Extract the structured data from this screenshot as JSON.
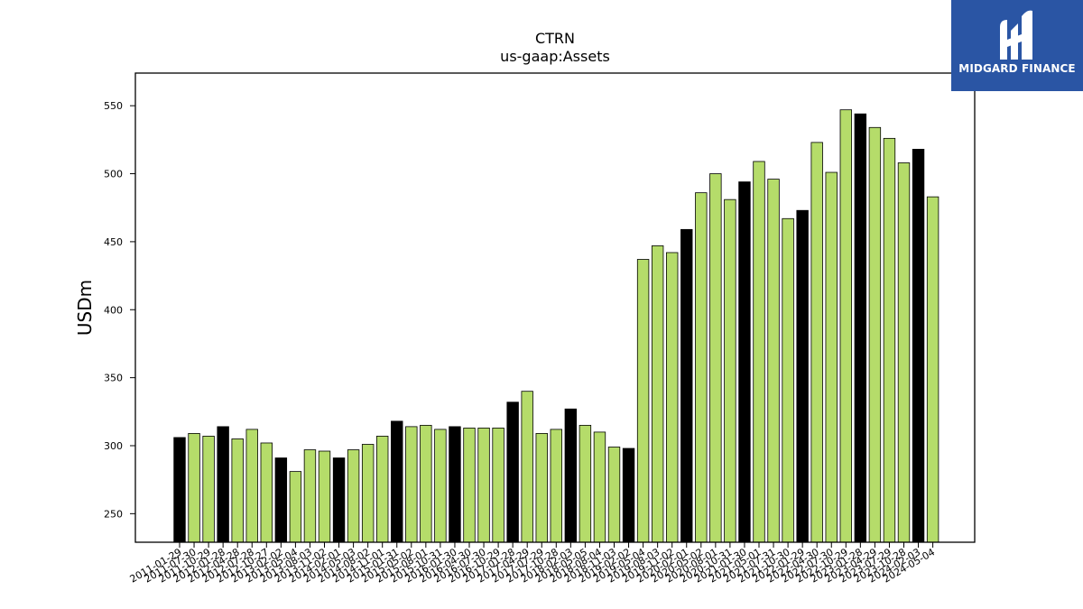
{
  "logo": {
    "text": "MIDGARD FINANCE",
    "icon": "midgard-logo-icon",
    "background": "#2a55a4"
  },
  "chart_data": {
    "type": "bar",
    "title": "CTRN",
    "subtitle": "us-gaap:Assets",
    "xlabel": "",
    "ylabel": "USDm",
    "ylim": [
      229,
      574
    ],
    "yticks": [
      250,
      300,
      350,
      400,
      450,
      500,
      550
    ],
    "grid": false,
    "colors": {
      "quarter": "#b5dc6a",
      "fiscal_year_end": "#000000",
      "edge": "#000000"
    },
    "categories": [
      "2011-01-29",
      "2011-07-30",
      "2011-10-29",
      "2012-01-28",
      "2012-04-28",
      "2012-07-28",
      "2012-10-27",
      "2013-02-02",
      "2013-05-04",
      "2013-08-03",
      "2013-11-02",
      "2014-02-01",
      "2014-05-03",
      "2014-08-02",
      "2014-11-01",
      "2015-01-31",
      "2015-05-02",
      "2015-08-01",
      "2015-10-31",
      "2016-01-30",
      "2016-04-30",
      "2016-07-30",
      "2016-10-29",
      "2017-01-28",
      "2017-04-29",
      "2017-07-29",
      "2017-10-28",
      "2018-02-03",
      "2018-05-05",
      "2018-08-04",
      "2018-11-03",
      "2019-02-02",
      "2019-05-04",
      "2019-08-03",
      "2019-11-02",
      "2020-02-01",
      "2020-05-02",
      "2020-08-01",
      "2020-10-31",
      "2021-01-30",
      "2021-05-01",
      "2021-07-31",
      "2021-10-30",
      "2022-01-29",
      "2022-04-30",
      "2022-07-30",
      "2022-10-29",
      "2023-01-28",
      "2023-04-29",
      "2023-07-29",
      "2023-10-28",
      "2024-02-03",
      "2024-05-04"
    ],
    "values": [
      306,
      309,
      307,
      314,
      305,
      312,
      302,
      291,
      281,
      297,
      296,
      291,
      297,
      301,
      307,
      318,
      314,
      315,
      312,
      314,
      313,
      313,
      313,
      332,
      340,
      309,
      312,
      327,
      315,
      310,
      299,
      298,
      437,
      447,
      442,
      459,
      486,
      500,
      481,
      494,
      509,
      496,
      467,
      473,
      523,
      501,
      547,
      544,
      534,
      526,
      508,
      518,
      483
    ],
    "highlight": [
      true,
      false,
      false,
      true,
      false,
      false,
      false,
      true,
      false,
      false,
      false,
      true,
      false,
      false,
      false,
      true,
      false,
      false,
      false,
      true,
      false,
      false,
      false,
      true,
      false,
      false,
      false,
      true,
      false,
      false,
      false,
      true,
      false,
      false,
      false,
      true,
      false,
      false,
      false,
      true,
      false,
      false,
      false,
      true,
      false,
      false,
      false,
      true,
      false,
      false,
      false,
      true,
      false
    ]
  }
}
